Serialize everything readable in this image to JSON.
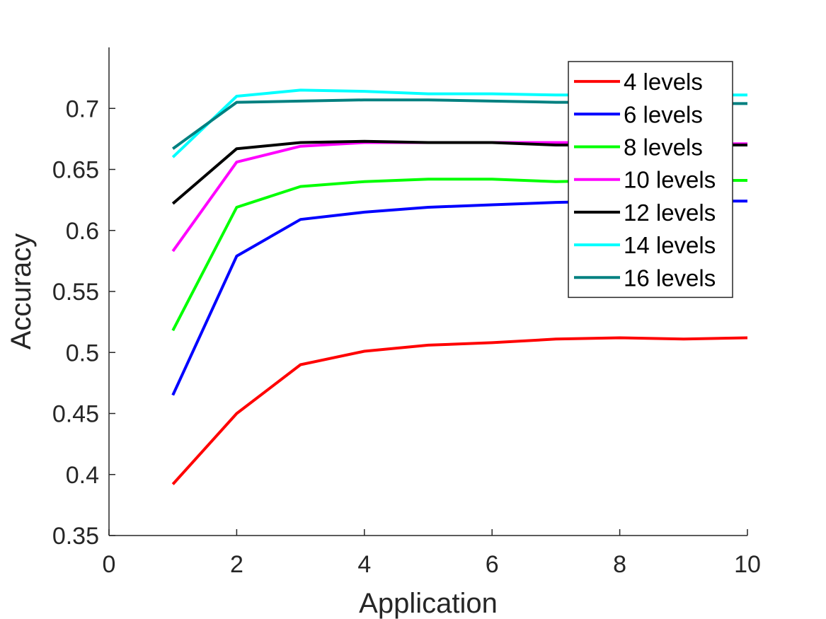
{
  "chart_data": {
    "type": "line",
    "title": "",
    "xlabel": "Application",
    "ylabel": "Accuracy",
    "xlim": [
      0,
      10
    ],
    "ylim": [
      0.35,
      0.75
    ],
    "x_ticks": [
      0,
      2,
      4,
      6,
      8,
      10
    ],
    "x_tick_labels": [
      "0",
      "2",
      "4",
      "6",
      "8",
      "10"
    ],
    "y_ticks": [
      0.35,
      0.4,
      0.45,
      0.5,
      0.55,
      0.6,
      0.65,
      0.7
    ],
    "y_tick_labels": [
      "0.35",
      "0.4",
      "0.45",
      "0.5",
      "0.55",
      "0.6",
      "0.65",
      "0.7"
    ],
    "grid": false,
    "legend_position": "top-right",
    "x": [
      1,
      2,
      3,
      4,
      5,
      6,
      7,
      8,
      9,
      10
    ],
    "series": [
      {
        "name": "4 levels",
        "color": "#ff0000",
        "values": [
          0.392,
          0.45,
          0.49,
          0.501,
          0.506,
          0.508,
          0.511,
          0.512,
          0.511,
          0.512
        ]
      },
      {
        "name": "6 levels",
        "color": "#0000ff",
        "values": [
          0.465,
          0.579,
          0.609,
          0.615,
          0.619,
          0.621,
          0.623,
          0.624,
          0.624,
          0.624
        ]
      },
      {
        "name": "8 levels",
        "color": "#00ff00",
        "values": [
          0.518,
          0.619,
          0.636,
          0.64,
          0.642,
          0.642,
          0.64,
          0.641,
          0.641,
          0.641
        ]
      },
      {
        "name": "10 levels",
        "color": "#ff00ff",
        "values": [
          0.583,
          0.656,
          0.669,
          0.672,
          0.672,
          0.672,
          0.672,
          0.672,
          0.671,
          0.671
        ]
      },
      {
        "name": "12 levels",
        "color": "#000000",
        "values": [
          0.622,
          0.667,
          0.672,
          0.673,
          0.672,
          0.672,
          0.67,
          0.67,
          0.67,
          0.67
        ]
      },
      {
        "name": "14 levels",
        "color": "#00ffff",
        "values": [
          0.66,
          0.71,
          0.715,
          0.714,
          0.712,
          0.712,
          0.711,
          0.711,
          0.711,
          0.711
        ]
      },
      {
        "name": "16 levels",
        "color": "#008080",
        "values": [
          0.667,
          0.705,
          0.706,
          0.707,
          0.707,
          0.706,
          0.705,
          0.705,
          0.704,
          0.704
        ]
      }
    ]
  }
}
